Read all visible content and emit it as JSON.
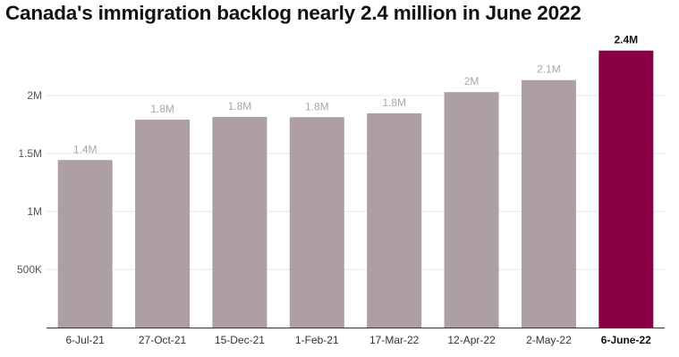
{
  "chart_data": {
    "type": "bar",
    "title": "Canada's immigration backlog nearly 2.4 million in June 2022",
    "categories": [
      "6-Jul-21",
      "27-Oct-21",
      "15-Dec-21",
      "1-Feb-21",
      "17-Mar-22",
      "12-Apr-22",
      "2-May-22",
      "6-June-22"
    ],
    "values": [
      1444000,
      1792000,
      1815000,
      1813000,
      1846000,
      2029000,
      2133000,
      2387000
    ],
    "data_labels": [
      "1.4M",
      "1.8M",
      "1.8M",
      "1.8M",
      "1.8M",
      "2M",
      "2.1M",
      "2.4M"
    ],
    "highlight_index": 7,
    "ylim": [
      0,
      2450000
    ],
    "yticks": [
      {
        "value": 500000,
        "label": "500K"
      },
      {
        "value": 1000000,
        "label": "1M"
      },
      {
        "value": 1500000,
        "label": "1.5M"
      },
      {
        "value": 2000000,
        "label": "2M"
      }
    ],
    "xlabel": "",
    "ylabel": "",
    "grid": true,
    "colors": {
      "bar": "#ae9fa4",
      "highlight": "#8b0045",
      "grid": "#e6e6e6",
      "axis": "#333333"
    }
  }
}
